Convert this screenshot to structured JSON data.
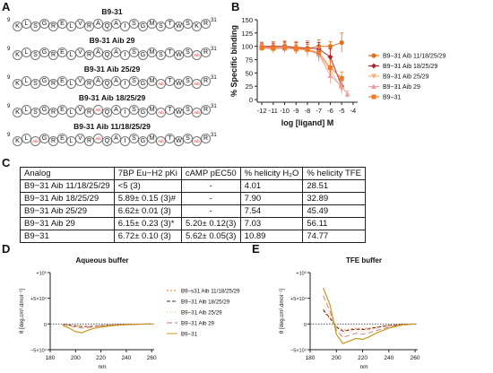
{
  "panels": {
    "A": "A",
    "B": "B",
    "C": "C",
    "D": "D",
    "E": "E"
  },
  "peptides": [
    {
      "title": "B9-31",
      "start": "9",
      "end": "31",
      "residues": [
        "K",
        "L",
        "S",
        "G",
        "R",
        "E",
        "L",
        "V",
        "R",
        "A",
        "Q",
        "A",
        "I",
        "S",
        "G",
        "M",
        "S",
        "T",
        "W",
        "S",
        "K",
        "R"
      ],
      "aib_positions": []
    },
    {
      "title": "B9-31 Aib 29",
      "start": "9",
      "end": "31",
      "residues": [
        "K",
        "L",
        "S",
        "G",
        "R",
        "E",
        "L",
        "V",
        "R",
        "A",
        "Q",
        "A",
        "I",
        "S",
        "G",
        "M",
        "S",
        "T",
        "W",
        "S",
        "Aib",
        "R"
      ],
      "aib_positions": [
        20
      ]
    },
    {
      "title": "B9-31 Aib 25/29",
      "start": "9",
      "end": "31",
      "residues": [
        "K",
        "L",
        "S",
        "G",
        "R",
        "E",
        "L",
        "V",
        "R",
        "A",
        "Q",
        "A",
        "I",
        "S",
        "G",
        "M",
        "Aib",
        "T",
        "W",
        "S",
        "Aib",
        "R"
      ],
      "aib_positions": [
        16,
        20
      ]
    },
    {
      "title": "B9-31 Aib 18/25/29",
      "start": "9",
      "end": "31",
      "residues": [
        "K",
        "L",
        "S",
        "G",
        "R",
        "E",
        "L",
        "V",
        "R",
        "Aib",
        "Q",
        "A",
        "I",
        "S",
        "G",
        "M",
        "Aib",
        "T",
        "W",
        "S",
        "Aib",
        "R"
      ],
      "aib_positions": [
        9,
        16,
        20
      ]
    },
    {
      "title": "B9-31 Aib 11/18/25/29",
      "start": "9",
      "end": "31",
      "residues": [
        "K",
        "L",
        "Aib",
        "G",
        "R",
        "E",
        "L",
        "V",
        "R",
        "Aib",
        "Q",
        "A",
        "I",
        "S",
        "G",
        "M",
        "Aib",
        "T",
        "W",
        "S",
        "Aib",
        "R"
      ],
      "aib_positions": [
        2,
        9,
        16,
        20
      ]
    }
  ],
  "table": {
    "headers": [
      "Analog",
      "7BP Eu−H2 pKi",
      "cAMP pEC50",
      "% helicity H₂O",
      "% helicity TFE"
    ],
    "rows": [
      [
        "B9−31 Aib 11/18/25/29",
        "<5 (3)",
        "-",
        "4.01",
        "28.51"
      ],
      [
        "B9−31 Aib 18/25/29",
        "5.89± 0.15 (3)#",
        "-",
        "7.90",
        "32.89"
      ],
      [
        "B9−31 Aib 25/29",
        "6.62± 0.01 (3)",
        "-",
        "7.54",
        "45.49"
      ],
      [
        "B9−31 Aib 29",
        "6.15± 0.23 (3)*",
        "5.20± 0.12(3)",
        "7.03",
        "56.11"
      ],
      [
        "B9−31",
        "6.72± 0.10 (3)",
        "5.62± 0.05(3)",
        "10.89",
        "74.77"
      ]
    ]
  },
  "chart_data": [
    {
      "type": "line",
      "panel": "B",
      "title": "",
      "xlabel": "log [ligand] M",
      "ylabel": "% Specific binding",
      "xlim": [
        -12.4,
        -3.6
      ],
      "ylim": [
        -5,
        150
      ],
      "xticks": [
        "-12",
        "-11",
        "-10",
        "-9",
        "-8",
        "-7",
        "-6",
        "-5",
        "-4"
      ],
      "yticks": [
        "0",
        "25",
        "50",
        "75",
        "100",
        "125",
        "150"
      ],
      "legend_position": "right",
      "series": [
        {
          "name": "B9−31 Aib 11/18/25/29",
          "color": "#e0701c",
          "marker": "circle",
          "x": [
            -12,
            -11,
            -10,
            -9,
            -8,
            -7,
            -6,
            -5
          ],
          "y": [
            100,
            100,
            100,
            98,
            96,
            100,
            100,
            107
          ],
          "err": [
            8,
            9,
            10,
            11,
            14,
            12,
            9,
            18
          ]
        },
        {
          "name": "B9−31 Aib 18/25/29",
          "color": "#b3202b",
          "marker": "diamond",
          "x": [
            -12,
            -11,
            -10,
            -9,
            -8,
            -7,
            -6,
            -5
          ],
          "y": [
            100,
            99,
            100,
            98,
            97,
            95,
            80,
            25
          ],
          "err": [
            6,
            7,
            8,
            9,
            10,
            12,
            15,
            10
          ]
        },
        {
          "name": "B9−31 Aib 25/29",
          "color": "#f3b37c",
          "marker": "triangle-down",
          "x": [
            -12,
            -11,
            -10,
            -9,
            -8,
            -7,
            -6,
            -5
          ],
          "y": [
            98,
            95,
            97,
            96,
            92,
            85,
            55,
            20
          ],
          "err": [
            7,
            8,
            8,
            10,
            12,
            14,
            15,
            10
          ]
        },
        {
          "name": "B9−31 Aib 29",
          "color": "#ef9fa0",
          "marker": "triangle-up",
          "x": [
            -12,
            -11,
            -10,
            -9,
            -8,
            -7,
            -6,
            -5,
            -4.5
          ],
          "y": [
            99,
            97,
            96,
            95,
            94,
            85,
            45,
            25,
            10
          ],
          "err": [
            5,
            6,
            7,
            8,
            10,
            12,
            15,
            10,
            6
          ]
        },
        {
          "name": "B9−31",
          "color": "#f07a22",
          "marker": "square",
          "x": [
            -12,
            -11,
            -10,
            -9,
            -8,
            -7,
            -6,
            -5
          ],
          "y": [
            97,
            96,
            97,
            95,
            94,
            88,
            60,
            40
          ],
          "err": [
            6,
            6,
            7,
            8,
            10,
            12,
            14,
            12
          ]
        }
      ]
    },
    {
      "type": "line",
      "panel": "D",
      "title": "Aqueous buffer",
      "xlabel": "nm",
      "ylabel": "θ [deg.cm².dmol⁻¹]",
      "xlim": [
        180,
        262
      ],
      "ylim": [
        -50000,
        100000
      ],
      "xticks": [
        "180",
        "200",
        "220",
        "240",
        "260"
      ],
      "yticks": [
        "+10⁵",
        "+5×10⁴",
        "0",
        "−5×10⁴"
      ],
      "legend_position": "right",
      "series": [
        {
          "name": "B9−s31 Aib 11/18/25/29",
          "color": "#e7801f",
          "dash": "2,2",
          "x": [
            190,
            195,
            200,
            205,
            210,
            215,
            220,
            225,
            230,
            240,
            250,
            260
          ],
          "y": [
            -2000,
            -3000,
            -4000,
            -5000,
            -5000,
            -4000,
            -3000,
            -2000,
            -1500,
            -800,
            -300,
            0
          ]
        },
        {
          "name": "B9−31 Aib 18/25/29",
          "color": "#6b1a1a",
          "dash": "4,2",
          "x": [
            190,
            195,
            200,
            205,
            210,
            215,
            220,
            225,
            230,
            240,
            250,
            260
          ],
          "y": [
            -1000,
            -2000,
            -3500,
            -5000,
            -5000,
            -4500,
            -3500,
            -2500,
            -1800,
            -900,
            -300,
            0
          ]
        },
        {
          "name": "B9−31 Aib 25/29",
          "color": "#f4c27c",
          "dash": "1,2",
          "x": [
            190,
            195,
            200,
            205,
            210,
            215,
            220,
            225,
            230,
            240,
            250,
            260
          ],
          "y": [
            -1500,
            -2500,
            -4000,
            -6000,
            -5500,
            -4500,
            -3500,
            -2500,
            -1800,
            -900,
            -300,
            0
          ]
        },
        {
          "name": "B9−31 Aib 29",
          "color": "#c47a7a",
          "dash": "6,3",
          "x": [
            190,
            195,
            200,
            205,
            210,
            215,
            220,
            225,
            230,
            240,
            250,
            260
          ],
          "y": [
            -1000,
            -3000,
            -6000,
            -8000,
            -7000,
            -5000,
            -4000,
            -3000,
            -2000,
            -1000,
            -400,
            0
          ]
        },
        {
          "name": "B9−31",
          "color": "#c9971e",
          "dash": "",
          "x": [
            190,
            195,
            200,
            205,
            210,
            215,
            220,
            225,
            230,
            240,
            250,
            260
          ],
          "y": [
            -3000,
            -8000,
            -15000,
            -17000,
            -12000,
            -8000,
            -6000,
            -4500,
            -3000,
            -1500,
            -500,
            0
          ]
        }
      ]
    },
    {
      "type": "line",
      "panel": "E",
      "title": "TFE buffer",
      "xlabel": "nm",
      "ylabel": "θ [deg.cm².dmol⁻¹]",
      "xlim": [
        180,
        262
      ],
      "ylim": [
        -50000,
        100000
      ],
      "xticks": [
        "180",
        "200",
        "220",
        "240",
        "260"
      ],
      "yticks": [
        "+10⁵",
        "+5×10⁴",
        "0",
        "−5×10⁴"
      ],
      "legend_position": "none",
      "series": [
        {
          "name": "B9−s31 Aib 11/18/25/29",
          "color": "#e7801f",
          "dash": "2,2",
          "x": [
            190,
            195,
            200,
            205,
            210,
            215,
            220,
            225,
            230,
            240,
            250,
            260
          ],
          "y": [
            25000,
            10000,
            -5000,
            -12000,
            -10000,
            -8000,
            -9000,
            -8000,
            -6000,
            -2500,
            -800,
            0
          ]
        },
        {
          "name": "B9−31 Aib 18/25/29",
          "color": "#6b1a1a",
          "dash": "4,2",
          "x": [
            190,
            195,
            200,
            205,
            210,
            215,
            220,
            225,
            230,
            240,
            250,
            260
          ],
          "y": [
            28000,
            12000,
            -6000,
            -14000,
            -12000,
            -10000,
            -11000,
            -9500,
            -7000,
            -3000,
            -900,
            0
          ]
        },
        {
          "name": "B9−31 Aib 25/29",
          "color": "#f4c27c",
          "dash": "1,2",
          "x": [
            190,
            195,
            200,
            205,
            210,
            215,
            220,
            225,
            230,
            240,
            250,
            260
          ],
          "y": [
            40000,
            18000,
            -8000,
            -18000,
            -16000,
            -13000,
            -14000,
            -12000,
            -9000,
            -4000,
            -1200,
            0
          ]
        },
        {
          "name": "B9−31 Aib 29",
          "color": "#c47a7a",
          "dash": "6,3",
          "x": [
            190,
            195,
            200,
            205,
            210,
            215,
            220,
            225,
            230,
            240,
            250,
            260
          ],
          "y": [
            55000,
            25000,
            -12000,
            -26000,
            -22000,
            -18000,
            -20000,
            -17000,
            -13000,
            -6000,
            -1500,
            0
          ]
        },
        {
          "name": "B9−31",
          "color": "#c9971e",
          "dash": "",
          "x": [
            190,
            195,
            200,
            205,
            210,
            215,
            220,
            225,
            230,
            240,
            250,
            260
          ],
          "y": [
            70000,
            38000,
            -20000,
            -38000,
            -33000,
            -28000,
            -30000,
            -25000,
            -18000,
            -8000,
            -2000,
            0
          ]
        }
      ]
    }
  ]
}
